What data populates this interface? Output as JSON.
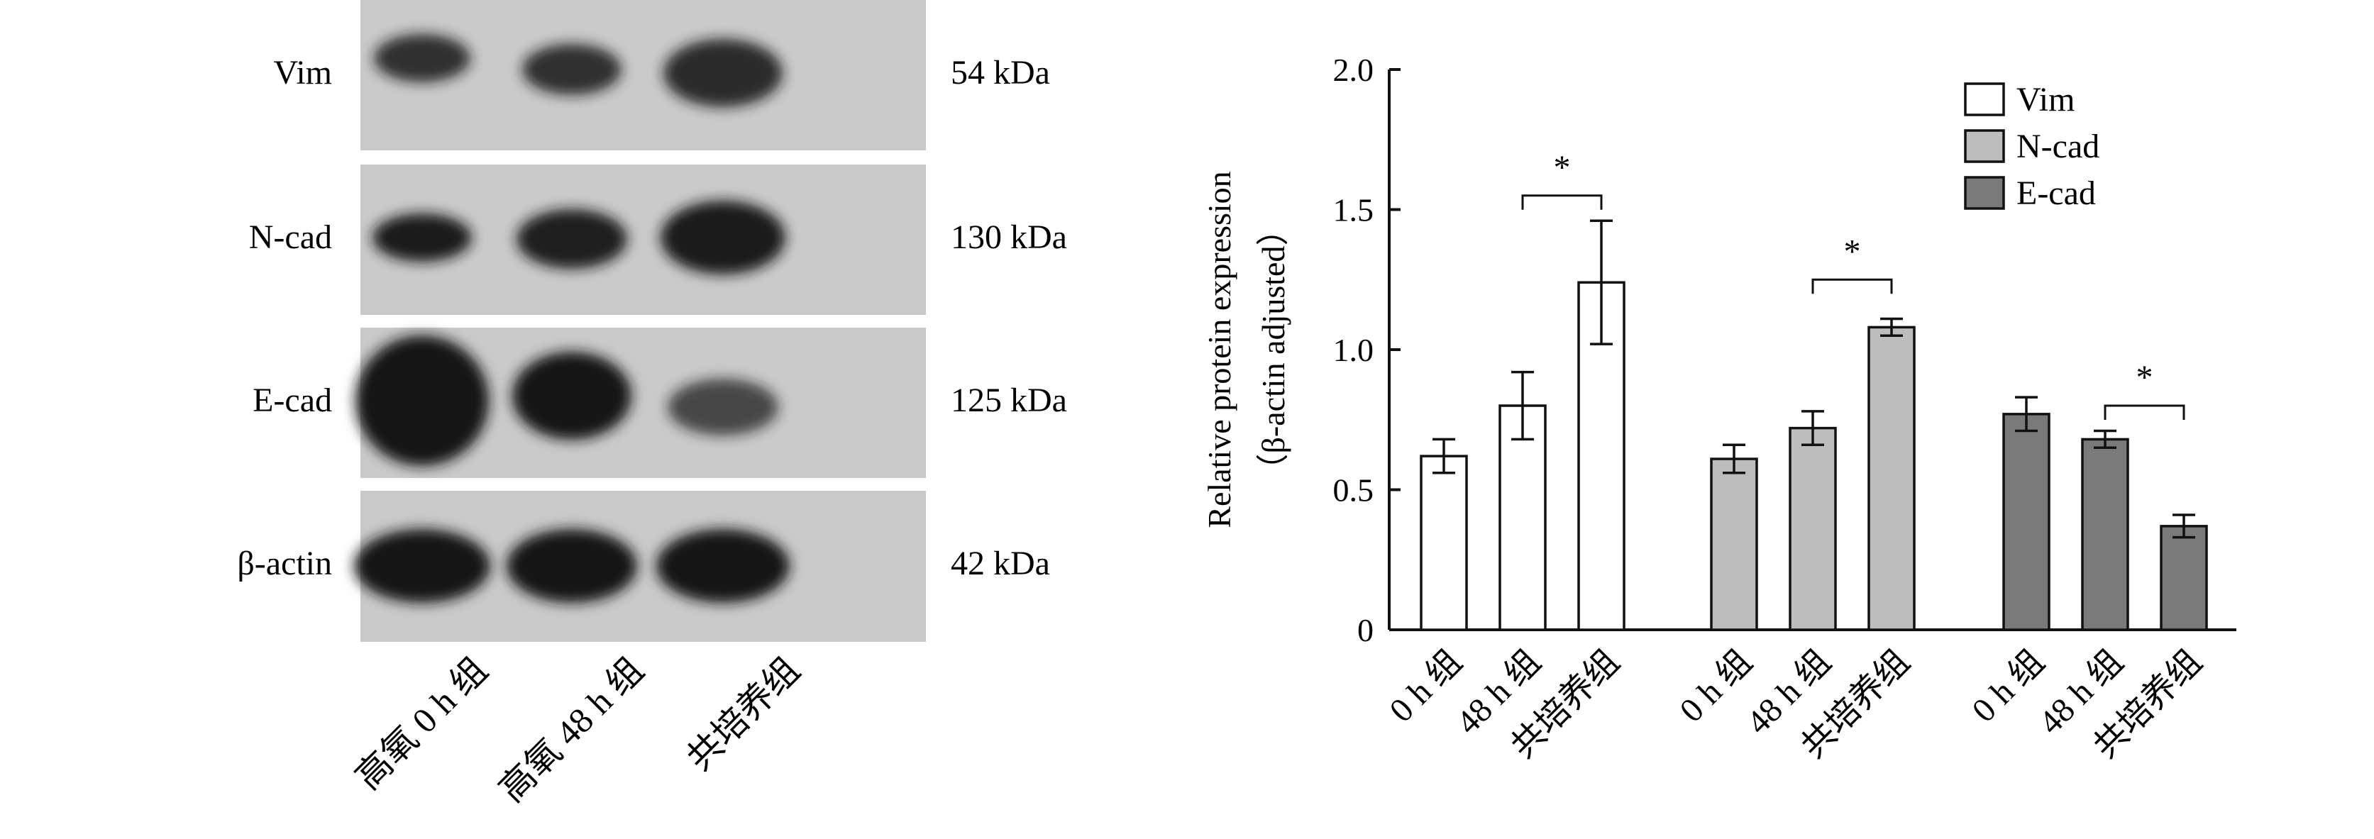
{
  "blot": {
    "rows": [
      {
        "label": "Vim",
        "kda": "54 kDa"
      },
      {
        "label": "N-cad",
        "kda": "130 kDa"
      },
      {
        "label": "E-cad",
        "kda": "125 kDa"
      },
      {
        "label": "β-actin",
        "kda": "42 kDa"
      }
    ],
    "lanes": [
      "高氧 0 h 组",
      "高氧 48 h 组",
      "共培养组"
    ]
  },
  "chart_data": {
    "type": "bar",
    "ylabel_line1": "Relative protein expression",
    "ylabel_line2": "（β-actin adjusted）",
    "ylim": [
      0,
      2.0
    ],
    "yticks": [
      0,
      0.5,
      1.0,
      1.5,
      2.0
    ],
    "ytick_labels": [
      "0",
      "0.5",
      "1.0",
      "1.5",
      "2.0"
    ],
    "categories": [
      "0 h 组",
      "48 h 组",
      "共培养组"
    ],
    "legend_position": "top-right",
    "series": [
      {
        "name": "Vim",
        "color": "#ffffff",
        "values": [
          0.62,
          0.8,
          1.24
        ],
        "errors": [
          0.06,
          0.12,
          0.22
        ]
      },
      {
        "name": "N-cad",
        "color": "#bdbdbd",
        "values": [
          0.61,
          0.72,
          1.08
        ],
        "errors": [
          0.05,
          0.06,
          0.03
        ]
      },
      {
        "name": "E-cad",
        "color": "#7a7a7a",
        "values": [
          0.77,
          0.68,
          0.37
        ],
        "errors": [
          0.06,
          0.03,
          0.04
        ]
      }
    ],
    "annotations": [
      {
        "series": 0,
        "from": 1,
        "to": 2,
        "y": 1.55,
        "label": "*"
      },
      {
        "series": 1,
        "from": 1,
        "to": 2,
        "y": 1.25,
        "label": "*"
      },
      {
        "series": 2,
        "from": 1,
        "to": 2,
        "y": 0.8,
        "label": "*"
      }
    ]
  }
}
